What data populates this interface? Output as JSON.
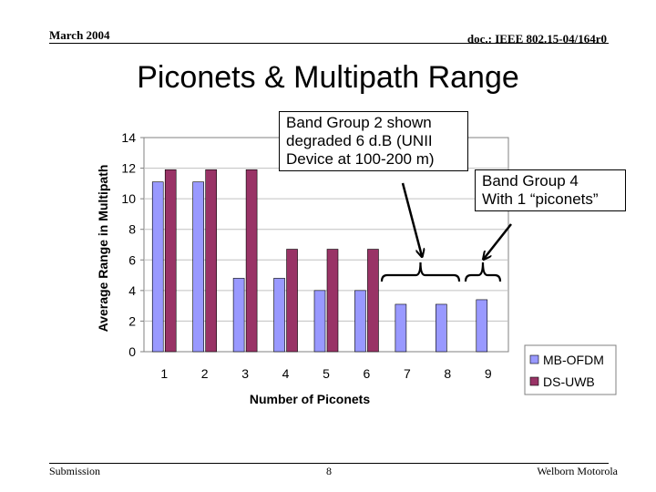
{
  "header": {
    "date": "March 2004",
    "doc_id": "doc.: IEEE 802.15-04/164r0"
  },
  "slide": {
    "title": "Piconets & Multipath Range"
  },
  "callouts": {
    "band_group_2": [
      "Band Group 2 shown",
      "degraded 6 d.B (UNII",
      "Device at 100-200 m)"
    ],
    "band_group_4": [
      "Band Group 4",
      "With 1 “piconets”"
    ]
  },
  "footer": {
    "left": "Submission",
    "page_number": "8",
    "right": "Welborn Motorola"
  },
  "chart_data": {
    "type": "bar",
    "xlabel": "Number of Piconets",
    "ylabel": "Average Range in Multipath",
    "categories": [
      "1",
      "2",
      "3",
      "4",
      "5",
      "6",
      "7",
      "8",
      "9"
    ],
    "ylim": [
      0,
      14
    ],
    "yticks": [
      0,
      2,
      4,
      6,
      8,
      10,
      12,
      14
    ],
    "grid": true,
    "legend_position": "bottom-right",
    "series": [
      {
        "name": "MB-OFDM",
        "color": "#9999ff",
        "values": [
          11.1,
          11.1,
          4.8,
          4.8,
          4.0,
          4.0,
          3.1,
          3.1,
          3.4
        ]
      },
      {
        "name": "DS-UWB",
        "color": "#993366",
        "values": [
          11.9,
          11.9,
          11.9,
          6.7,
          6.7,
          6.7,
          null,
          null,
          null
        ]
      }
    ]
  }
}
